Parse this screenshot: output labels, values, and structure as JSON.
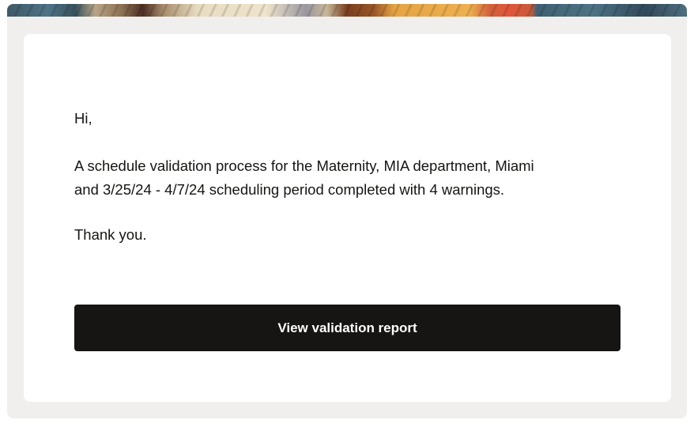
{
  "email": {
    "greeting": "Hi,",
    "body_line1": "A schedule validation process for the Maternity, MIA department, Miami",
    "body_line2": "and 3/25/24 - 4/7/24 scheduling period completed with 4 warnings.",
    "closing": "Thank you.",
    "button_label": "View validation report"
  },
  "colors": {
    "button_bg": "#161513",
    "panel_bg": "#f0efed"
  }
}
